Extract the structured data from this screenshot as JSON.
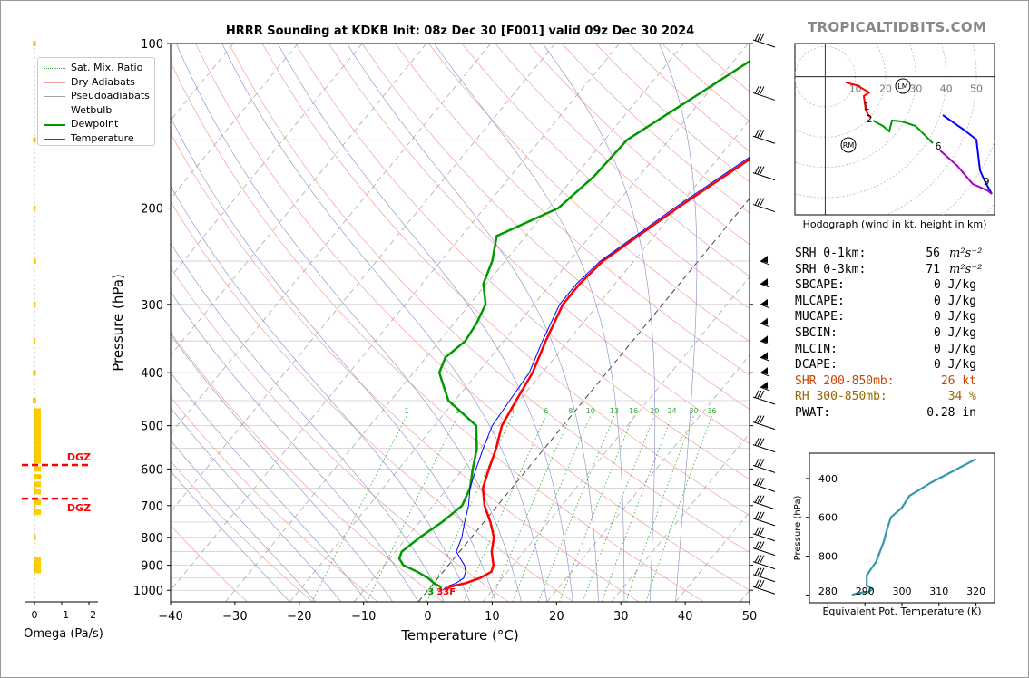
{
  "brand": "TROPICALTIDBITS.COM",
  "title": "HRRR Sounding at KDKB Init: 08z Dec 30 [F001] valid 09z Dec 30 2024",
  "colors": {
    "temperature": "#ff0000",
    "dewpoint": "#009900",
    "wetbulb": "#0000ff",
    "dry_adiabat": "#f0a0a0",
    "pseudoadiabat": "#a0a0a0",
    "mixing_ratio": "#33aa33",
    "dgz": "#ff0000",
    "omega": "#ffcc00",
    "hodo_low": "#ff0000",
    "hodo_mid": "#009900",
    "hodo_upper": "#0000ff",
    "hodo_top": "#aa00cc",
    "theta_e": "#3399aa"
  },
  "legend": [
    {
      "label": "Sat. Mix. Ratio",
      "style": "dotted",
      "color": "#33aa33"
    },
    {
      "label": "Dry Adiabats",
      "style": "solid-thin",
      "color": "#f0a0a0"
    },
    {
      "label": "Pseudoadiabats",
      "style": "solid-thin",
      "color": "#a0a0a0"
    },
    {
      "label": "Wetbulb",
      "style": "solid",
      "color": "#0000ff"
    },
    {
      "label": "Dewpoint",
      "style": "thick",
      "color": "#009900"
    },
    {
      "label": "Temperature",
      "style": "thick",
      "color": "#ff0000"
    }
  ],
  "params": [
    {
      "label": "SRH 0-1km:",
      "value": "56",
      "unit": "m²s⁻²",
      "color": "#000"
    },
    {
      "label": "SRH 0-3km:",
      "value": "71",
      "unit": "m²s⁻²",
      "color": "#000"
    },
    {
      "label": "SBCAPE:",
      "value": "0 J/kg",
      "unit": "",
      "color": "#000"
    },
    {
      "label": "MLCAPE:",
      "value": "0 J/kg",
      "unit": "",
      "color": "#000"
    },
    {
      "label": "MUCAPE:",
      "value": "0 J/kg",
      "unit": "",
      "color": "#000"
    },
    {
      "label": "SBCIN:",
      "value": "0 J/kg",
      "unit": "",
      "color": "#000"
    },
    {
      "label": "MLCIN:",
      "value": "0 J/kg",
      "unit": "",
      "color": "#000"
    },
    {
      "label": "DCAPE:",
      "value": "0 J/kg",
      "unit": "",
      "color": "#000"
    },
    {
      "label": "SHR 200-850mb:",
      "value": "26 kt",
      "unit": "",
      "color": "#cc4400"
    },
    {
      "label": "RH 300-850mb:",
      "value": "34 %",
      "unit": "",
      "color": "#996600"
    },
    {
      "label": "PWAT:",
      "value": "0.28 in",
      "unit": "",
      "color": "#000"
    }
  ],
  "chart_data": [
    {
      "type": "line",
      "name": "skewt",
      "xlabel": "Temperature (°C)",
      "ylabel": "Pressure (hPa)",
      "xlim": [
        -40,
        50
      ],
      "ylim": [
        1050,
        100
      ],
      "yscale": "log",
      "xticks": [
        "−40",
        "−30",
        "−20",
        "−10",
        "0",
        "10",
        "20",
        "30",
        "40",
        "50"
      ],
      "yticks": [
        "100",
        "200",
        "300",
        "400",
        "500",
        "600",
        "700",
        "800",
        "900",
        "1000"
      ],
      "ytick_values": [
        100,
        200,
        300,
        400,
        500,
        600,
        700,
        800,
        900,
        1000
      ],
      "grid": true,
      "legend_position": "top-left",
      "surface_label": "33F",
      "surface_dew_label": "3",
      "mixing_ratio_labels": [
        "1",
        "2",
        "4",
        "6",
        "8",
        "10",
        "13",
        "16",
        "20",
        "24",
        "30",
        "36"
      ],
      "series": [
        {
          "name": "Temperature",
          "p": [
            1000,
            985,
            970,
            950,
            925,
            900,
            875,
            850,
            800,
            750,
            700,
            650,
            600,
            550,
            500,
            450,
            400,
            350,
            300,
            275,
            250,
            200,
            150,
            125,
            100
          ],
          "t": [
            2.7,
            3.0,
            5.0,
            6.5,
            7.5,
            7.0,
            6.0,
            5.0,
            3.5,
            1.0,
            -2.0,
            -4.5,
            -6.0,
            -7.5,
            -9.5,
            -10.5,
            -11.5,
            -13.5,
            -15.5,
            -15.5,
            -14.8,
            -10.0,
            -3.0,
            1.5,
            9.5
          ]
        },
        {
          "name": "Dewpoint",
          "p": [
            1000,
            985,
            970,
            950,
            925,
            900,
            875,
            850,
            800,
            750,
            700,
            650,
            600,
            550,
            500,
            450,
            400,
            375,
            350,
            325,
            300,
            275,
            250,
            225,
            200,
            175,
            150,
            125,
            100
          ],
          "t": [
            2.0,
            1.5,
            0.0,
            -1.5,
            -4.0,
            -7.0,
            -8.5,
            -9.0,
            -8.0,
            -6.5,
            -5.5,
            -6.5,
            -8.5,
            -10.5,
            -13.5,
            -21.0,
            -26.0,
            -27.0,
            -26.0,
            -26.5,
            -27.5,
            -30.5,
            -32.0,
            -34.5,
            -28.5,
            -27.0,
            -26.5,
            -21.5,
            -15.5
          ]
        },
        {
          "name": "Wetbulb",
          "p": [
            1000,
            985,
            970,
            950,
            925,
            900,
            875,
            850,
            800,
            750,
            700,
            650,
            600,
            550,
            500,
            450,
            400,
            350,
            300,
            275,
            250,
            200,
            150,
            125,
            100
          ],
          "t": [
            2.3,
            2.4,
            3.5,
            4.0,
            3.5,
            2.5,
            1.0,
            -0.5,
            -1.5,
            -3.0,
            -4.5,
            -6.5,
            -8.0,
            -9.5,
            -11.0,
            -11.5,
            -12.0,
            -14.0,
            -16.0,
            -16.0,
            -15.2,
            -10.5,
            -3.5,
            0.5,
            8.5
          ]
        }
      ]
    },
    {
      "type": "line",
      "name": "hodograph",
      "caption": "Hodograph (wind in kt, height in km)",
      "xlim": [
        -10,
        56
      ],
      "ylim": [
        -45,
        11
      ],
      "ring_labels": [
        "10",
        "20",
        "30",
        "40",
        "50"
      ],
      "markers": [
        {
          "label": "LM",
          "u": 26,
          "v": -3
        },
        {
          "label": "RM",
          "u": -2,
          "v": -22
        }
      ],
      "height_labels": [
        {
          "label": "1",
          "u": 4,
          "v": -10
        },
        {
          "label": "2",
          "u": 5,
          "v": -14
        },
        {
          "label": "6",
          "u": 37,
          "v": -23
        },
        {
          "label": "9",
          "u": 53,
          "v": -34
        }
      ],
      "series": [
        {
          "name": "0-1km",
          "u": [
            0,
            5,
            7.5,
            5,
            4,
            5,
            6
          ],
          "v": [
            -2,
            -3,
            -5,
            -7,
            -10,
            -12,
            -14
          ]
        },
        {
          "name": "1-3km",
          "u": [
            6,
            10,
            12,
            13.5,
            13.5,
            15,
            20,
            26,
            30
          ],
          "v": [
            -14,
            -16,
            -18,
            -18,
            -14,
            -14,
            -15,
            -20,
            -23
          ]
        },
        {
          "name": "3-6km",
          "u": [
            30,
            32,
            36,
            41,
            48,
            51
          ],
          "v": [
            -23,
            -27,
            -32,
            -26,
            -20,
            -22
          ]
        },
        {
          "name": "6-9km",
          "u": [
            32,
            36,
            42,
            48,
            54,
            56
          ],
          "v": [
            -12,
            -17,
            -22,
            -30,
            -34,
            -40
          ]
        },
        {
          "name": "top",
          "u": [
            39,
            44,
            49,
            54,
            56
          ],
          "v": [
            -24,
            -30,
            -35,
            -37,
            -39
          ]
        }
      ]
    },
    {
      "type": "line",
      "name": "theta_e_profile",
      "xlabel": "Equivalent Pot. Temperature (K)",
      "ylabel": "Pressure (hPa)",
      "xlim": [
        275,
        325
      ],
      "ylim": [
        1040,
        270
      ],
      "xticks": [
        "280",
        "290",
        "300",
        "310",
        "320"
      ],
      "yticks": [
        "400",
        "600",
        "800"
      ],
      "series": [
        {
          "name": "Theta-E",
          "x": [
            286.5,
            288,
            291,
            292,
            290.5,
            290.5,
            291.5,
            293,
            294,
            295,
            296,
            297,
            300,
            302,
            308,
            312,
            316,
            320
          ],
          "y": [
            1000,
            990,
            985,
            970,
            950,
            900,
            870,
            830,
            780,
            730,
            660,
            600,
            550,
            490,
            420,
            380,
            340,
            300
          ]
        }
      ]
    },
    {
      "type": "bar",
      "name": "omega",
      "xlabel": "Omega (Pa/s)",
      "xticks": [
        "0",
        "−1",
        "−2"
      ],
      "xlim": [
        0.2,
        -2.5
      ],
      "dgz_label": "DGZ",
      "dgz_levels": [
        590,
        680
      ],
      "p": [
        100,
        150,
        200,
        250,
        300,
        350,
        400,
        450,
        500,
        550,
        600,
        650,
        700,
        800,
        900
      ],
      "values": [
        0.05,
        0.05,
        0.02,
        0.01,
        0.02,
        0.03,
        0.05,
        0.06,
        0.02,
        0.02,
        0.03,
        0.02,
        0.02,
        0.01,
        0.02
      ],
      "color": "#ffcc00"
    }
  ]
}
